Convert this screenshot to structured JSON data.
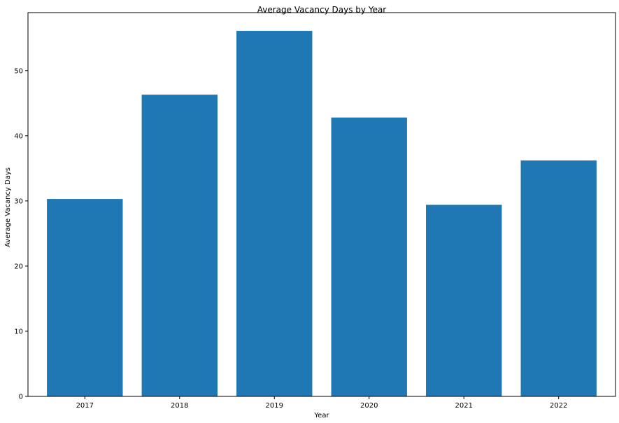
{
  "chart_data": {
    "type": "bar",
    "title": "Average Vacancy Days by Year",
    "xlabel": "Year",
    "ylabel": "Average Vacancy Days",
    "categories": [
      "2017",
      "2018",
      "2019",
      "2020",
      "2021",
      "2022"
    ],
    "values": [
      30.3,
      46.3,
      56.1,
      42.8,
      29.4,
      36.2
    ],
    "ylim": [
      0,
      58.9
    ],
    "yticks": [
      0,
      10,
      20,
      30,
      40,
      50
    ],
    "bar_color": "#1f77b4",
    "grid": false,
    "legend": null
  }
}
